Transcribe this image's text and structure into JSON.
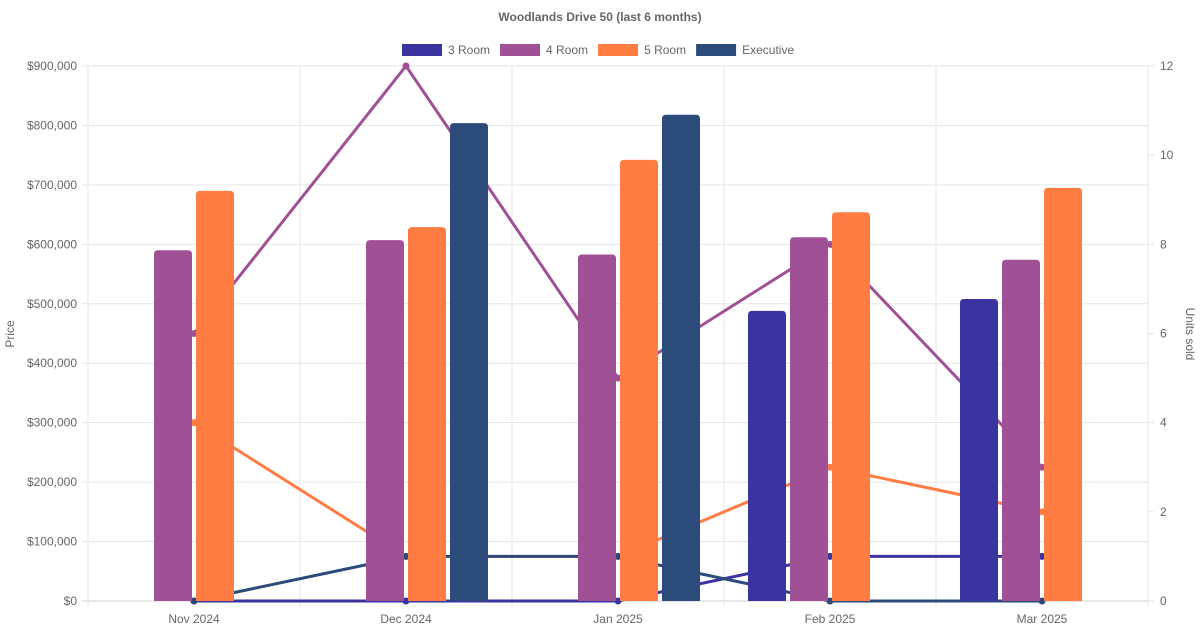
{
  "chart_data": {
    "type": "bar",
    "title": "Woodlands Drive 50 (last 6 months)",
    "categories": [
      "Nov 2024",
      "Dec 2024",
      "Jan 2025",
      "Feb 2025",
      "Mar 2025"
    ],
    "ylabel": "Price",
    "y2label": "Units sold",
    "ylim": [
      0,
      900000
    ],
    "y2lim": [
      0,
      12
    ],
    "yticks": [
      "$0",
      "$100,000",
      "$200,000",
      "$300,000",
      "$400,000",
      "$500,000",
      "$600,000",
      "$700,000",
      "$800,000",
      "$900,000"
    ],
    "y2ticks": [
      "0",
      "2",
      "4",
      "6",
      "8",
      "10",
      "12"
    ],
    "legend_position": "top",
    "grid": true,
    "series": [
      {
        "name": "3 Room",
        "color": "#3a33a0",
        "price": [
          null,
          null,
          null,
          488000,
          508000
        ],
        "units": [
          0,
          0,
          0,
          1,
          1
        ]
      },
      {
        "name": "4 Room",
        "color": "#a05195",
        "price": [
          590000,
          607000,
          583000,
          612000,
          574000
        ],
        "units": [
          6,
          12,
          5,
          8,
          3
        ]
      },
      {
        "name": "5 Room",
        "color": "#ff7c43",
        "price": [
          690000,
          629000,
          742000,
          654000,
          695000
        ],
        "units": [
          4,
          1,
          1,
          3,
          2
        ]
      },
      {
        "name": "Executive",
        "color": "#2c4b7b",
        "price": [
          null,
          804000,
          818000,
          null,
          null
        ],
        "units": [
          0,
          1,
          1,
          0,
          0
        ]
      }
    ]
  }
}
